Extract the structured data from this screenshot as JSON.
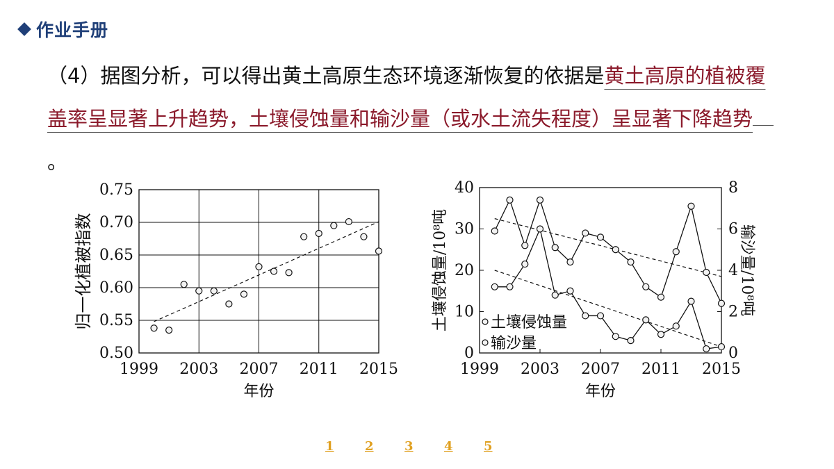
{
  "header": {
    "title": "作业手册"
  },
  "question": {
    "prefix": "（4）据图分析，可以得出黄土高原生态环境逐渐恢复的依据是",
    "answer": "黄土高原的植被覆盖率呈显著上升趋势，土壤侵蚀量和输沙量（或水土流失程度）呈显著下降趋势",
    "suffix": "。"
  },
  "chart_data": [
    {
      "type": "scatter",
      "title": "",
      "xlabel": "年份",
      "ylabel": "归一化植被指数",
      "xlim": [
        1999,
        2015
      ],
      "ylim": [
        0.5,
        0.75
      ],
      "xticks": [
        "1999",
        "2003",
        "2007",
        "2011",
        "2015"
      ],
      "yticks": [
        "0.50",
        "0.55",
        "0.60",
        "0.65",
        "0.70",
        "0.75"
      ],
      "grid": true,
      "x": [
        2000,
        2001,
        2002,
        2003,
        2004,
        2005,
        2006,
        2007,
        2008,
        2009,
        2010,
        2011,
        2012,
        2013,
        2014,
        2015
      ],
      "y": [
        0.538,
        0.535,
        0.605,
        0.595,
        0.595,
        0.575,
        0.59,
        0.632,
        0.625,
        0.623,
        0.678,
        0.683,
        0.695,
        0.701,
        0.678,
        0.656
      ],
      "trendline": {
        "x": [
          2000,
          2015
        ],
        "y": [
          0.548,
          0.701
        ]
      }
    },
    {
      "type": "line",
      "title": "",
      "xlabel": "年份",
      "ylabel_left": "土壤侵蚀量/10⁸吨",
      "ylabel_right": "输沙量/10⁸吨",
      "xlim": [
        1999,
        2015
      ],
      "ylim_left": [
        0,
        40
      ],
      "ylim_right": [
        0,
        8
      ],
      "xticks": [
        "1999",
        "2003",
        "2007",
        "2011",
        "2015"
      ],
      "yticks_left": [
        "0",
        "10",
        "20",
        "30",
        "40"
      ],
      "yticks_right": [
        "0",
        "2",
        "4",
        "6",
        "8"
      ],
      "grid": false,
      "series": [
        {
          "name": "土壤侵蚀量",
          "axis": "left",
          "x": [
            2000,
            2001,
            2002,
            2003,
            2004,
            2005,
            2006,
            2007,
            2008,
            2009,
            2010,
            2011,
            2012,
            2013,
            2014,
            2015
          ],
          "values": [
            29.5,
            37,
            26,
            37,
            25.5,
            22,
            29,
            28,
            25,
            22,
            16,
            13.5,
            24.5,
            35.5,
            19.5,
            12
          ]
        },
        {
          "name": "输沙量",
          "axis": "right",
          "x": [
            2000,
            2001,
            2002,
            2003,
            2004,
            2005,
            2006,
            2007,
            2008,
            2009,
            2010,
            2011,
            2012,
            2013,
            2014,
            2015
          ],
          "values": [
            3.2,
            3.2,
            4.3,
            6.0,
            2.8,
            3.0,
            1.8,
            1.8,
            0.8,
            0.6,
            1.6,
            0.9,
            1.3,
            2.5,
            0.2,
            0.3
          ]
        }
      ],
      "trendlines": [
        {
          "axis": "left",
          "x": [
            2000,
            2015
          ],
          "y": [
            32.5,
            18.5
          ]
        },
        {
          "axis": "left",
          "x": [
            2000,
            2015
          ],
          "y": [
            20,
            1.5
          ]
        }
      ],
      "legend": [
        {
          "label": "土壤侵蚀量",
          "marker": "circle"
        },
        {
          "label": "输沙量",
          "marker": "circle"
        }
      ]
    }
  ],
  "pagination": {
    "pages": [
      "1",
      "2",
      "3",
      "4",
      "5"
    ]
  }
}
